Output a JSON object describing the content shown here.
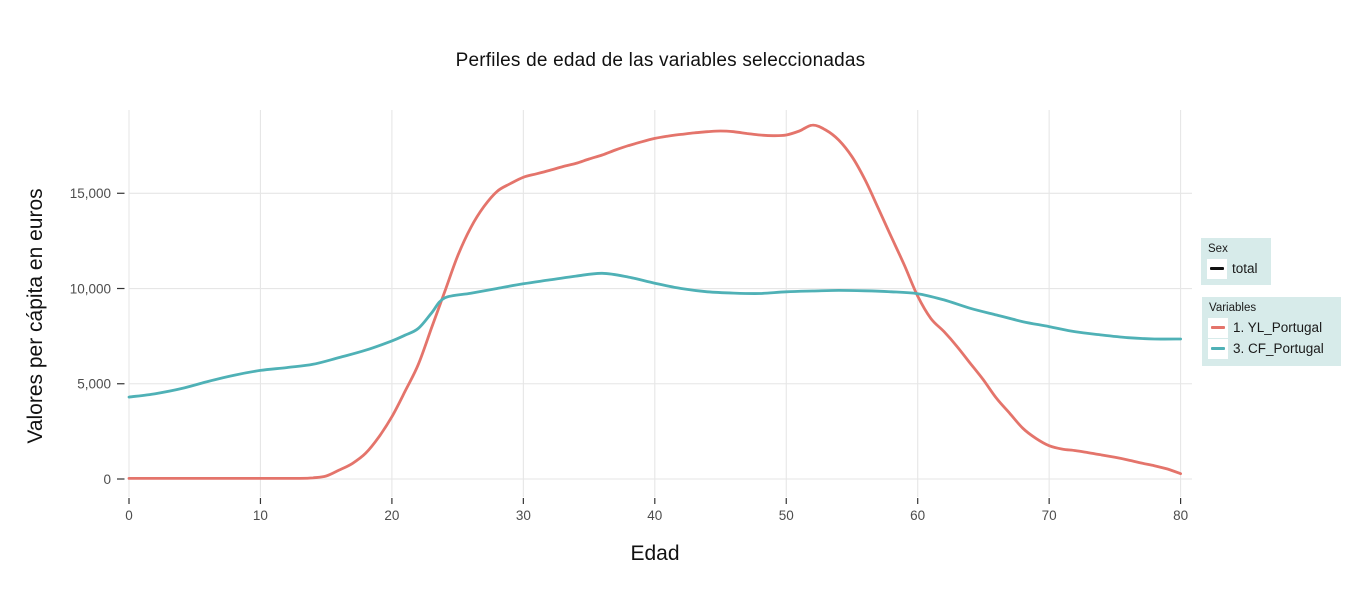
{
  "title": "Perfiles de edad de las variables seleccionadas",
  "x_axis": {
    "label": "Edad"
  },
  "y_axis": {
    "label": "Valores per cápita en euros"
  },
  "legend": {
    "sex": {
      "title": "Sex",
      "items": [
        {
          "label": "total",
          "color": "#111111"
        }
      ]
    },
    "variables": {
      "title": "Variables",
      "items": [
        {
          "label": "1. YL_Portugal",
          "color": "#e4746b"
        },
        {
          "label": "3. CF_Portugal",
          "color": "#4fb1b6"
        }
      ]
    }
  },
  "colors": {
    "series_red": "#e4746b",
    "series_teal": "#4fb1b6",
    "legend_bg": "#d7ebea",
    "gridline": "#e6e6e6",
    "tick_mark": "#333333",
    "tick_text": "#4d4d4d",
    "text": "#111111"
  },
  "chart_data": {
    "type": "line",
    "title": "Perfiles de edad de las variables seleccionadas",
    "xlabel": "Edad",
    "ylabel": "Valores per cápita en euros",
    "xlim": [
      0,
      80
    ],
    "ylim": [
      0,
      19600
    ],
    "grid": true,
    "legend_position": "right",
    "x_ticks": [
      0,
      10,
      20,
      30,
      40,
      50,
      60,
      70,
      80
    ],
    "y_ticks": [
      {
        "v": 0,
        "label": "0"
      },
      {
        "v": 5000,
        "label": "5,000"
      },
      {
        "v": 10000,
        "label": "10,000"
      },
      {
        "v": 15000,
        "label": "15,000"
      }
    ],
    "series": [
      {
        "name": "1. YL_Portugal",
        "color": "#e4746b",
        "x": [
          0,
          5,
          10,
          13,
          14,
          15,
          16,
          17,
          18,
          19,
          20,
          21,
          22,
          23,
          24,
          25,
          26,
          27,
          28,
          29,
          30,
          31,
          32,
          33,
          34,
          35,
          36,
          37,
          38,
          39,
          40,
          41,
          42,
          43,
          44,
          45,
          46,
          47,
          48,
          49,
          50,
          51,
          52,
          53,
          54,
          55,
          56,
          57,
          58,
          59,
          60,
          61,
          62,
          63,
          64,
          65,
          66,
          67,
          68,
          69,
          70,
          71,
          72,
          73,
          74,
          75,
          76,
          77,
          78,
          79,
          80
        ],
        "y": [
          30,
          30,
          30,
          30,
          60,
          160,
          470,
          820,
          1350,
          2200,
          3270,
          4600,
          6000,
          7900,
          9800,
          11700,
          13200,
          14300,
          15100,
          15500,
          15840,
          16020,
          16200,
          16400,
          16570,
          16800,
          17010,
          17270,
          17500,
          17700,
          17880,
          18000,
          18090,
          18170,
          18230,
          18270,
          18230,
          18140,
          18060,
          18020,
          18060,
          18270,
          18580,
          18320,
          17790,
          16920,
          15700,
          14210,
          12700,
          11200,
          9600,
          8430,
          7740,
          6950,
          6070,
          5200,
          4230,
          3450,
          2660,
          2130,
          1750,
          1570,
          1490,
          1380,
          1260,
          1140,
          1000,
          840,
          700,
          525,
          280
        ]
      },
      {
        "name": "3. CF_Portugal",
        "color": "#4fb1b6",
        "x": [
          0,
          2,
          4,
          6,
          8,
          10,
          12,
          14,
          16,
          18,
          20,
          21,
          22,
          23,
          24,
          26,
          28,
          30,
          32,
          34,
          36,
          38,
          40,
          42,
          44,
          46,
          48,
          50,
          52,
          54,
          56,
          58,
          60,
          62,
          64,
          66,
          68,
          70,
          72,
          74,
          76,
          78,
          80
        ],
        "y": [
          4300,
          4480,
          4750,
          5120,
          5450,
          5700,
          5850,
          6020,
          6380,
          6760,
          7250,
          7550,
          7900,
          8700,
          9500,
          9750,
          10000,
          10250,
          10450,
          10650,
          10800,
          10600,
          10280,
          10000,
          9830,
          9760,
          9740,
          9830,
          9870,
          9900,
          9880,
          9830,
          9730,
          9400,
          8960,
          8610,
          8260,
          8000,
          7730,
          7560,
          7420,
          7350,
          7350
        ]
      }
    ]
  }
}
